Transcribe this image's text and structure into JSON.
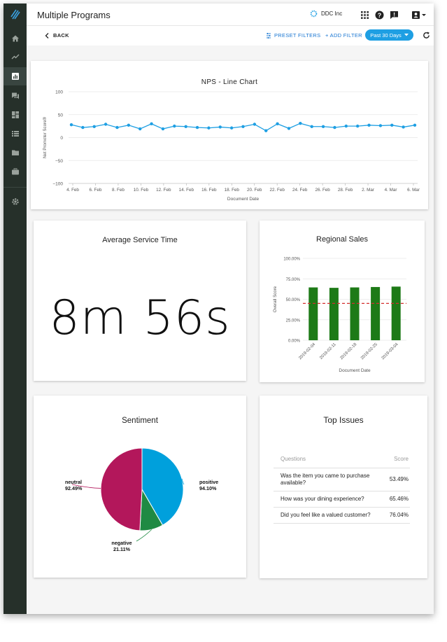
{
  "app": {
    "title": "Multiple Programs",
    "org": "DDC Inc"
  },
  "icons": {
    "logo": "logo-icon",
    "home": "home-icon",
    "trend": "trend-icon",
    "reports": "bar-chart-icon",
    "chat": "chat-icon",
    "dashboard": "dashboard-icon",
    "list": "list-icon",
    "folder": "folder-icon",
    "briefcase": "briefcase-icon",
    "settings": "gear-icon",
    "apps": "apps-grid-icon",
    "help": "help-icon",
    "feedback": "feedback-icon",
    "account": "account-icon"
  },
  "toolbar": {
    "back": "BACK",
    "preset": "PRESET FILTERS",
    "add_filter": "+ ADD FILTER",
    "range": "Past 30 Days"
  },
  "colors": {
    "accent": "#1e9fe3",
    "sidebar": "#26302a",
    "bar": "#1d7a17",
    "pie_positive": "#00a0dc",
    "pie_neutral": "#b3175b",
    "pie_negative": "#1f8a43",
    "threshold": "#d32f2f"
  },
  "nps": {
    "title": "NPS - Line Chart",
    "chart_data": {
      "type": "line",
      "title": "NPS - Line Chart",
      "xlabel": "Document Date",
      "ylabel": "Net Promoter Score®",
      "ylim": [
        -100,
        100
      ],
      "yticks": [
        "100",
        "50",
        "0",
        "−50",
        "−100"
      ],
      "xticks": [
        "4. Feb",
        "6. Feb",
        "8. Feb",
        "10. Feb",
        "12. Feb",
        "14. Feb",
        "16. Feb",
        "18. Feb",
        "20. Feb",
        "22. Feb",
        "24. Feb",
        "26. Feb",
        "28. Feb",
        "2. Mar",
        "4. Mar",
        "6. Mar"
      ],
      "values": [
        28,
        22,
        24,
        29,
        22,
        27,
        19,
        30,
        19,
        25,
        24,
        22,
        21,
        23,
        21,
        24,
        29,
        15,
        30,
        20,
        31,
        24,
        24,
        22,
        25,
        25,
        27,
        26,
        27,
        23,
        27
      ]
    }
  },
  "service_time": {
    "title": "Average Service Time",
    "value": "8m 56s"
  },
  "regional": {
    "title": "Regional Sales",
    "chart_data": {
      "type": "bar",
      "xlabel": "Document Date",
      "ylabel": "Overall Score",
      "ylim": [
        0,
        100
      ],
      "yticks": [
        "100.00%",
        "75.00%",
        "50.00%",
        "25.00%",
        "0.00%"
      ],
      "categories": [
        "2019-02-04",
        "2019-02-11",
        "2019-02-18",
        "2019-02-25",
        "2019-03-04"
      ],
      "values": [
        64.5,
        64,
        64.5,
        65,
        65.5
      ],
      "threshold": 45
    }
  },
  "sentiment": {
    "title": "Sentiment",
    "chart_data": {
      "type": "pie",
      "slices": [
        {
          "label": "positive",
          "value_label": "94.10%",
          "angle": 150
        },
        {
          "label": "negative",
          "value_label": "21.11%",
          "angle": 33
        },
        {
          "label": "neutral",
          "value_label": "92.49%",
          "angle": 177
        }
      ]
    }
  },
  "issues": {
    "title": "Top Issues",
    "col_question": "Questions",
    "col_score": "Score",
    "rows": [
      {
        "q": "Was the item you came to purchase available?",
        "s": "53.49%"
      },
      {
        "q": "How was your dining experience?",
        "s": "65.46%"
      },
      {
        "q": "Did you feel like a valued customer?",
        "s": "76.04%"
      }
    ]
  }
}
